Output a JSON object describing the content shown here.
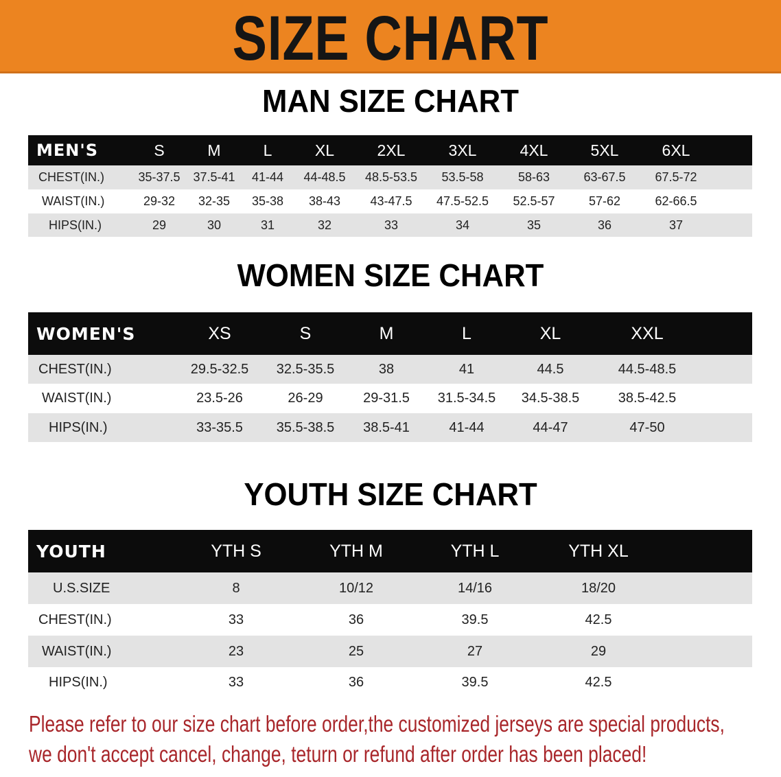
{
  "banner": {
    "title": "SIZE CHART",
    "color": "#ec8420"
  },
  "men": {
    "title": "MAN SIZE CHART",
    "header": [
      "MEN'S",
      "S",
      "M",
      "L",
      "XL",
      "2XL",
      "3XL",
      "4XL",
      "5XL",
      "6XL"
    ],
    "rows": [
      [
        "CHEST(IN.)",
        "35-37.5",
        "37.5-41",
        "41-44",
        "44-48.5",
        "48.5-53.5",
        "53.5-58",
        "58-63",
        "63-67.5",
        "67.5-72"
      ],
      [
        "WAIST(IN.)",
        "29-32",
        "32-35",
        "35-38",
        "38-43",
        "43-47.5",
        "47.5-52.5",
        "52.5-57",
        "57-62",
        "62-66.5"
      ],
      [
        "HIPS(IN.)",
        "29",
        "30",
        "31",
        "32",
        "33",
        "34",
        "35",
        "36",
        "37"
      ]
    ]
  },
  "women": {
    "title": "WOMEN SIZE CHART",
    "header": [
      "WOMEN'S",
      "XS",
      "S",
      "M",
      "L",
      "XL",
      "XXL"
    ],
    "rows": [
      [
        "CHEST(IN.)",
        "29.5-32.5",
        "32.5-35.5",
        "38",
        "41",
        "44.5",
        "44.5-48.5"
      ],
      [
        "WAIST(IN.)",
        "23.5-26",
        "26-29",
        "29-31.5",
        "31.5-34.5",
        "34.5-38.5",
        "38.5-42.5"
      ],
      [
        "HIPS(IN.)",
        "33-35.5",
        "35.5-38.5",
        "38.5-41",
        "41-44",
        "44-47",
        "47-50"
      ]
    ]
  },
  "youth": {
    "title": "YOUTH SIZE CHART",
    "header": [
      "YOUTH",
      "YTH S",
      "YTH M",
      "YTH L",
      "YTH XL"
    ],
    "rows": [
      [
        "U.S.SIZE",
        "8",
        "10/12",
        "14/16",
        "18/20"
      ],
      [
        "CHEST(IN.)",
        "33",
        "36",
        "39.5",
        "42.5"
      ],
      [
        "WAIST(IN.)",
        "23",
        "25",
        "27",
        "29"
      ],
      [
        "HIPS(IN.)",
        "33",
        "36",
        "39.5",
        "42.5"
      ]
    ]
  },
  "footer": {
    "line1": "Please refer to our size chart before order,the customized jerseys are special products,",
    "line2": "we don't accept cancel, change, teturn or refund after order has been placed!",
    "color": "#a8262a"
  }
}
